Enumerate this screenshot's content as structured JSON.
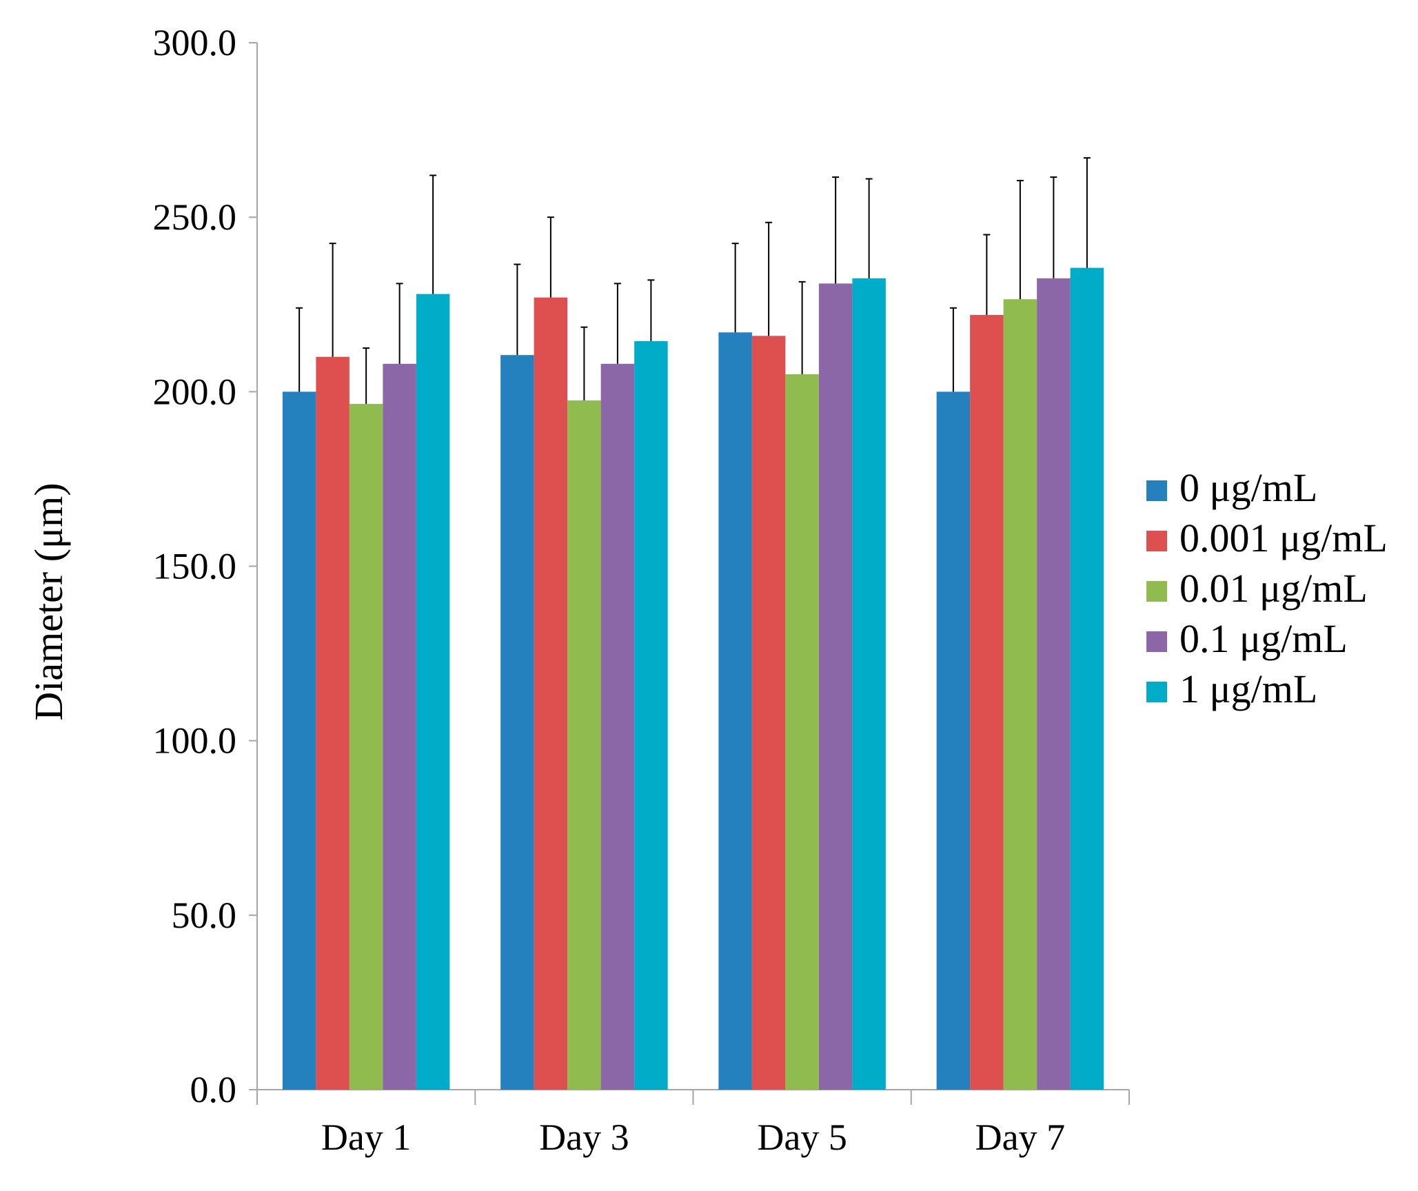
{
  "chart_data": {
    "type": "bar",
    "title": "",
    "xlabel": "",
    "ylabel": "Diameter (μm)",
    "ylim": [
      0,
      300
    ],
    "yticks": [
      0,
      50,
      100,
      150,
      200,
      250,
      300
    ],
    "ytick_labels": [
      "0.0",
      "50.0",
      "100.0",
      "150.0",
      "200.0",
      "250.0",
      "300.0"
    ],
    "categories": [
      "Day 1",
      "Day 3",
      "Day 5",
      "Day 7"
    ],
    "series": [
      {
        "name": "0 μg/mL",
        "color": "#2580BE",
        "values": [
          200.0,
          210.5,
          217.0,
          200.0
        ],
        "errors": [
          24.0,
          26.0,
          25.5,
          24.0
        ]
      },
      {
        "name": "0.001 μg/mL",
        "color": "#DE4F4F",
        "values": [
          210.0,
          227.0,
          216.0,
          222.0
        ],
        "errors": [
          32.5,
          23.0,
          32.5,
          23.0
        ]
      },
      {
        "name": "0.01 μg/mL",
        "color": "#90BB4F",
        "values": [
          196.5,
          197.5,
          205.0,
          226.5
        ],
        "errors": [
          16.0,
          21.0,
          26.5,
          34.0
        ]
      },
      {
        "name": "0.1 μg/mL",
        "color": "#8C67A8",
        "values": [
          208.0,
          208.0,
          231.0,
          232.5
        ],
        "errors": [
          23.0,
          23.0,
          30.5,
          29.0
        ]
      },
      {
        "name": "1 μg/mL",
        "color": "#00ACC8",
        "values": [
          228.0,
          214.5,
          232.5,
          235.5
        ],
        "errors": [
          34.0,
          17.5,
          28.5,
          31.5
        ]
      }
    ],
    "error_bars": "upper",
    "grid": false,
    "legend_position": "right"
  }
}
